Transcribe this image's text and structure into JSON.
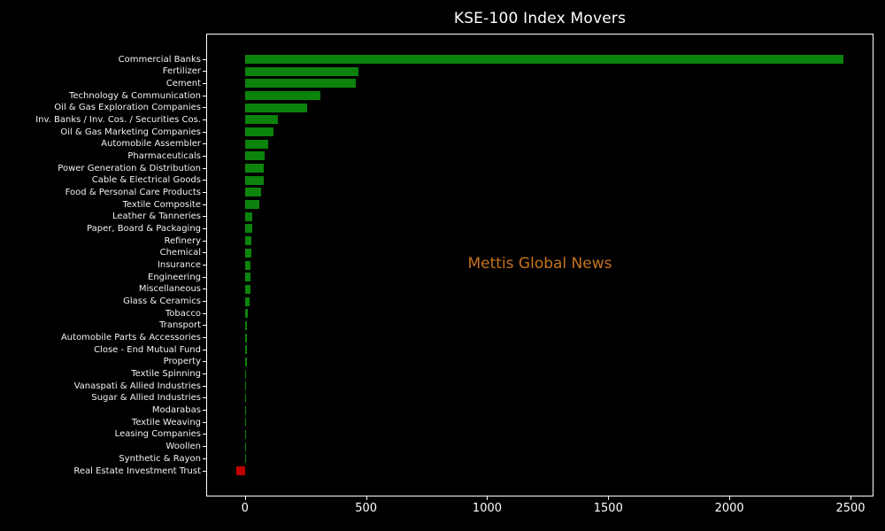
{
  "chart_data": {
    "type": "bar",
    "orientation": "horizontal",
    "title": "KSE-100 Index Movers",
    "watermark": "Mettis Global News",
    "categories": [
      "Commercial Banks",
      "Fertilizer",
      "Cement",
      "Technology & Communication",
      "Oil & Gas Exploration Companies",
      "Inv. Banks / Inv. Cos. / Securities Cos.",
      "Oil & Gas Marketing Companies",
      "Automobile Assembler",
      "Pharmaceuticals",
      "Power Generation & Distribution",
      "Cable & Electrical Goods",
      "Food & Personal Care Products",
      "Textile Composite",
      "Leather & Tanneries",
      "Paper, Board & Packaging",
      "Refinery",
      "Chemical",
      "Insurance",
      "Engineering",
      "Miscellaneous",
      "Glass & Ceramics",
      "Tobacco",
      "Transport",
      "Automobile Parts & Accessories",
      "Close - End Mutual Fund",
      "Property",
      "Textile Spinning",
      "Vanaspati & Allied Industries",
      "Sugar & Allied Industries",
      "Modarabas",
      "Textile Weaving",
      "Leasing Companies",
      "Woollen",
      "Synthetic & Rayon",
      "Real Estate Investment Trust"
    ],
    "values": [
      2470,
      468,
      458,
      311,
      256,
      137,
      119,
      94,
      81,
      78,
      77,
      67,
      59,
      30,
      29,
      27,
      26,
      24,
      22,
      21,
      19,
      11,
      9,
      8.5,
      7.5,
      7,
      5,
      4.5,
      3.5,
      3,
      1.5,
      1,
      0.7,
      0.3,
      -35
    ],
    "x_ticks": [
      0,
      500,
      1000,
      1500,
      2000,
      2500
    ],
    "x_tick_labels": [
      "0",
      "500",
      "1000",
      "1500",
      "2000",
      "2500"
    ],
    "xlim": [
      -160,
      2595
    ],
    "xlabel": "",
    "ylabel": "",
    "grid": false,
    "background": "#000000",
    "colors": {
      "positive": "#0c830c",
      "negative": "#c00000",
      "text": "#f2f2f2",
      "tick_text": "#ffffff",
      "frame": "#ffffff",
      "watermark": "#c6731f"
    }
  }
}
